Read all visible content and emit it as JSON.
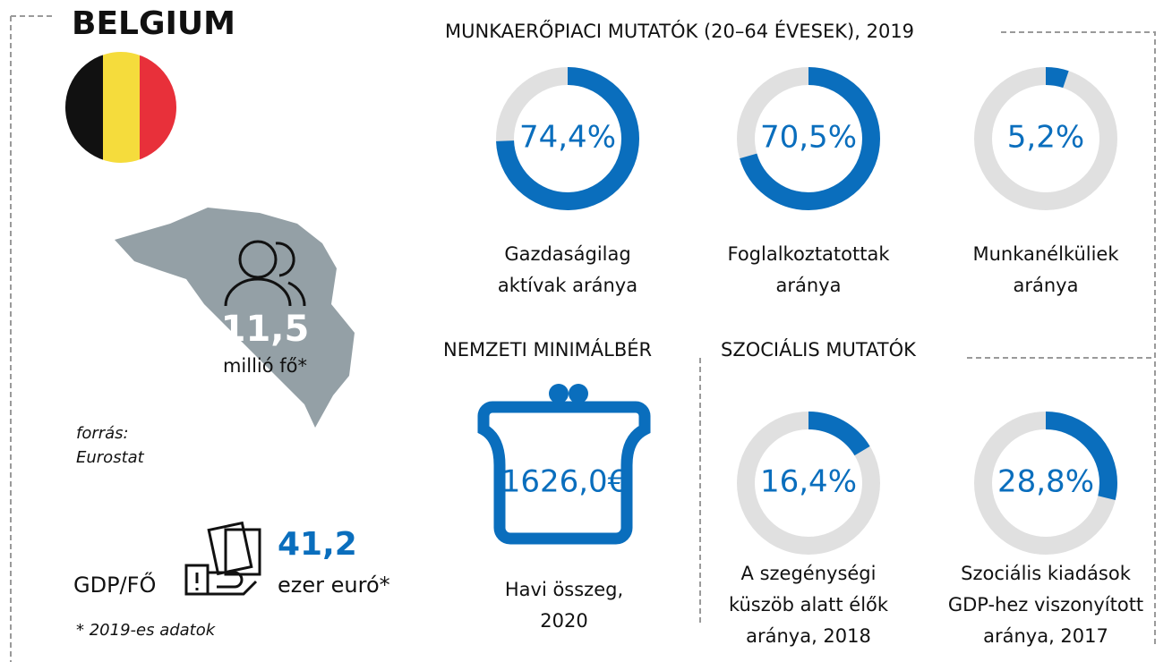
{
  "country": "BELGIUM",
  "population": {
    "value_label": "11,5",
    "unit": "millió fő*"
  },
  "source": [
    "forrás:",
    "Eurostat"
  ],
  "gdp": {
    "label": "GDP/FŐ",
    "value_label": "41,2",
    "unit": "ezer euró*"
  },
  "footnote": "* 2019-es adatok",
  "labour": {
    "title": "MUNKAERŐPIACI MUTATÓK (20–64 ÉVESEK), 2019",
    "indicators": [
      {
        "value": 74.4,
        "value_label": "74,4%",
        "label": [
          "Gazdaságilag",
          "aktívak aránya"
        ]
      },
      {
        "value": 70.5,
        "value_label": "70,5%",
        "label": [
          "Foglalkoztatottak",
          "aránya"
        ]
      },
      {
        "value": 5.2,
        "value_label": "5,2%",
        "label": [
          "Munkanélküliek",
          "aránya"
        ]
      }
    ]
  },
  "wage": {
    "title": "NEMZETI MINIMÁLBÉR",
    "value_label": "1626,0€",
    "label": [
      "Havi összeg,",
      "2020"
    ]
  },
  "social": {
    "title": "SZOCIÁLIS MUTATÓK",
    "indicators": [
      {
        "value": 16.4,
        "value_label": "16,4%",
        "label": [
          "A szegénységi",
          "küszöb alatt élők",
          "aránya, 2018"
        ]
      },
      {
        "value": 28.8,
        "value_label": "28,8%",
        "label": [
          "Szociális kiadások",
          "GDP-hez viszonyított",
          "aránya, 2017"
        ]
      }
    ]
  },
  "color": "#0a6ebd",
  "track_color": "#e0e0e0"
}
